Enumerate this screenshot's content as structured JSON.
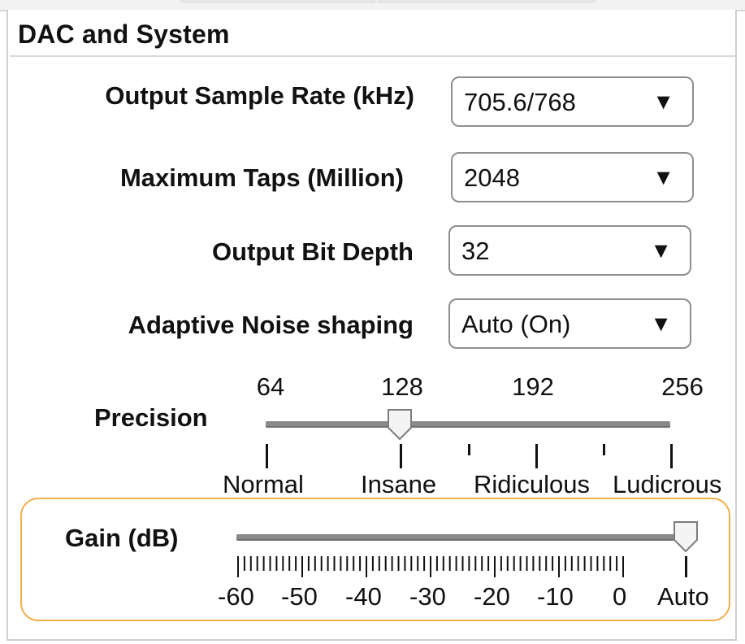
{
  "panel": {
    "title": "DAC and System"
  },
  "settings": [
    {
      "label": "Output Sample Rate (kHz)",
      "value": "705.6/768"
    },
    {
      "label": "Maximum Taps (Million)",
      "value": "2048"
    },
    {
      "label": "Output Bit Depth",
      "value": "32"
    },
    {
      "label": "Adaptive Noise shaping",
      "value": "Auto (On)"
    }
  ],
  "caret_glyph": "▼",
  "precision": {
    "label": "Precision",
    "ticks": [
      "64",
      "128",
      "192",
      "256"
    ],
    "words": [
      "Normal",
      "Insane",
      "Ridiculous",
      "Ludicrous"
    ],
    "value": "128"
  },
  "gain": {
    "label": "Gain (dB)",
    "scale": [
      "-60",
      "-50",
      "-40",
      "-30",
      "-20",
      "-10",
      "0",
      "Auto"
    ],
    "value": "Auto"
  },
  "colors": {
    "highlight": "#f0b04a",
    "track": "#8a8a8a",
    "border": "#8e8e8e"
  }
}
